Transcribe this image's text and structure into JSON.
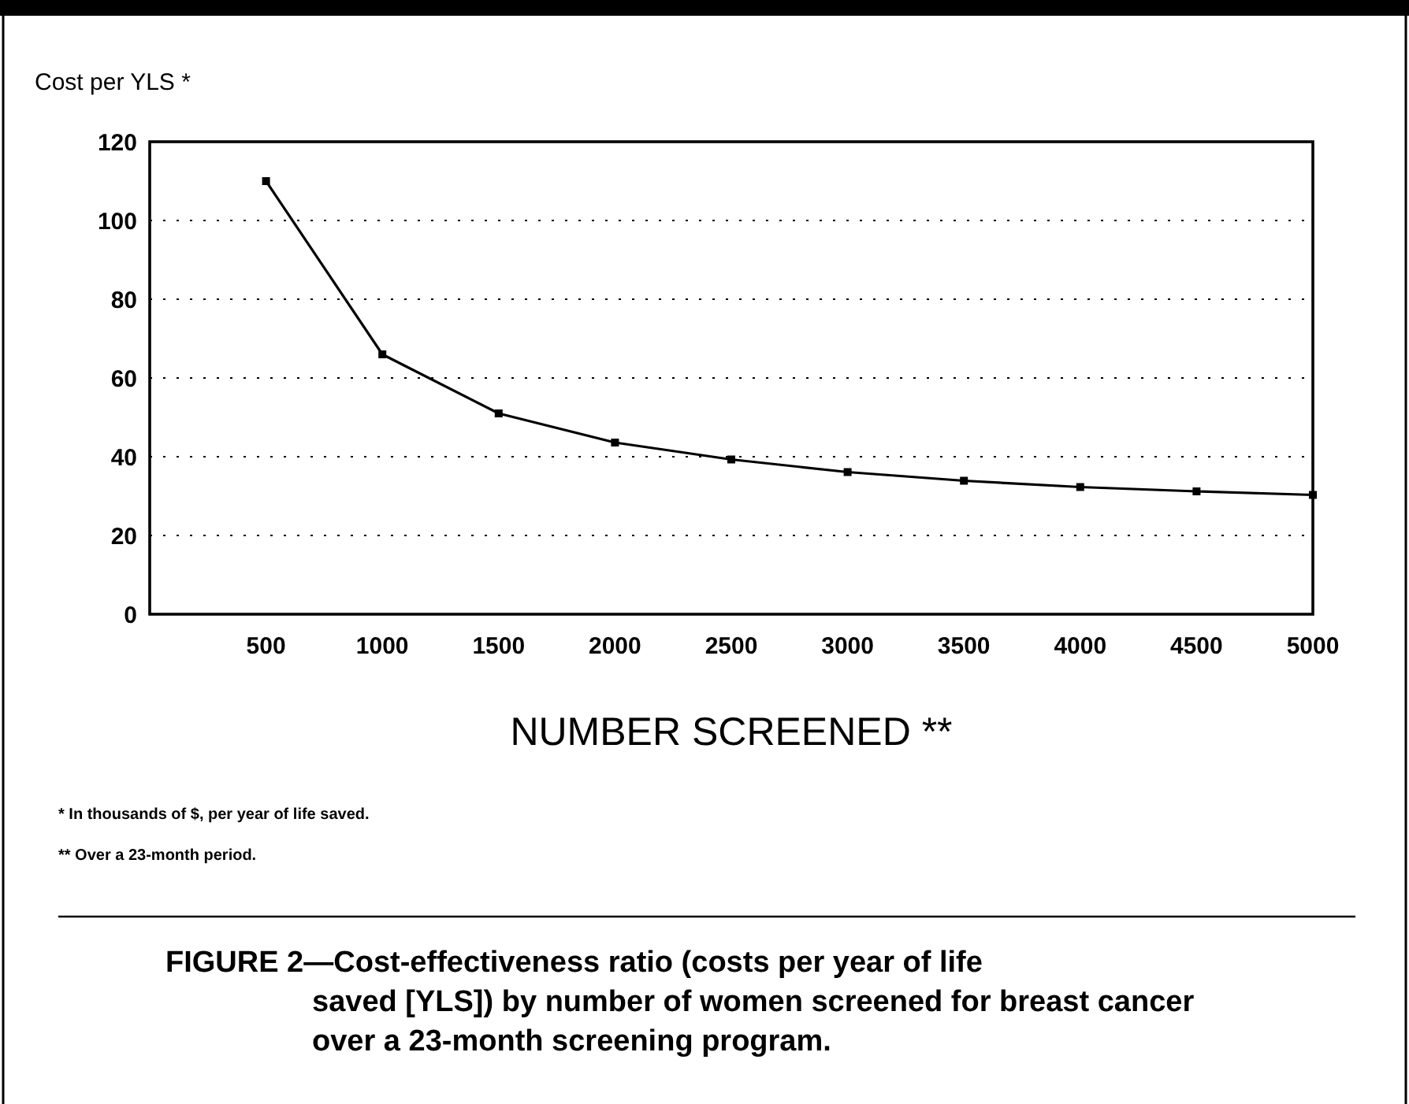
{
  "chart_data": {
    "type": "line",
    "ylabel": "Cost per YLS *",
    "xlabel": "NUMBER SCREENED **",
    "x": [
      500,
      1000,
      1500,
      2000,
      2500,
      3000,
      3500,
      4000,
      4500,
      5000
    ],
    "series": [
      {
        "color": "#000000",
        "values": [
          110,
          66,
          51,
          43.6,
          39.3,
          36.1,
          33.9,
          32.3,
          31.2,
          30.3
        ]
      }
    ],
    "xlim": [
      0,
      5000
    ],
    "xticks": [
      500,
      1000,
      1500,
      2000,
      2500,
      3000,
      3500,
      4000,
      4500,
      5000
    ],
    "ylim": [
      0,
      120
    ],
    "yticks": [
      0,
      20,
      40,
      60,
      80,
      100,
      120
    ],
    "grid": "y",
    "marker": "square",
    "line_style": "solid",
    "annotations": [
      "* In thousands of $, per year of life saved.",
      "** Over a 23-month period.",
      "FIGURE 2—Cost-effectiveness ratio (costs per year of life saved [YLS]) by number of women screened for breast cancer over a 23-month screening program."
    ]
  }
}
